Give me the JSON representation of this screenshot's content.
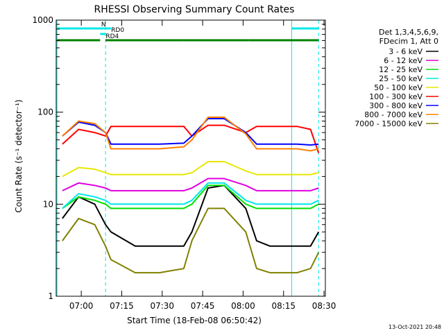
{
  "chart_data": {
    "type": "line",
    "title": "RHESSI Observing Summary Count Rates",
    "xlabel": "Start Time (18-Feb-08 06:50:42)",
    "ylabel": "Count Rate (s⁻¹ detector⁻¹)",
    "y_scale": "log",
    "ylim": [
      1,
      1000
    ],
    "xlim": [
      "06:50:42",
      "08:30:30"
    ],
    "x_ticks": [
      "07:00",
      "07:15",
      "07:30",
      "07:45",
      "08:00",
      "08:15",
      "08:30"
    ],
    "y_ticks": [
      "1",
      "10",
      "100",
      "1000"
    ],
    "grid": false,
    "legend_position": "right",
    "legend_header": [
      "Det 1,3,4,5,6,9,",
      "FDecim 1, Att 0"
    ],
    "timestamp": "13-Oct-2021 20:48",
    "x": [
      "06:53",
      "06:59",
      "07:05",
      "07:09",
      "07:11",
      "07:20",
      "07:29",
      "07:38",
      "07:41",
      "07:47",
      "07:53",
      "08:01",
      "08:05",
      "08:10",
      "08:15",
      "08:20",
      "08:25",
      "08:28"
    ],
    "series": [
      {
        "name": "3 - 6 keV",
        "color": "#000000",
        "values": [
          7,
          12,
          10,
          6,
          5,
          3.5,
          3.5,
          3.5,
          5,
          15,
          16,
          9,
          4,
          3.5,
          3.5,
          3.5,
          3.5,
          5
        ]
      },
      {
        "name": "6 - 12 keV",
        "color": "#e000e0",
        "values": [
          14,
          17,
          16,
          15,
          14,
          14,
          14,
          14,
          15,
          19,
          19,
          16,
          14,
          14,
          14,
          14,
          14,
          15
        ]
      },
      {
        "name": "12 - 25 keV",
        "color": "#00e000",
        "values": [
          9,
          12,
          11,
          10,
          9,
          9,
          9,
          9,
          10,
          16,
          16,
          10,
          9,
          9,
          9,
          9,
          9,
          10
        ]
      },
      {
        "name": "25 - 50 keV",
        "color": "#00e8e8",
        "values": [
          9,
          13,
          12,
          11,
          10,
          10,
          10,
          10,
          11,
          17,
          17,
          11,
          10,
          10,
          10,
          10,
          10,
          11
        ]
      },
      {
        "name": "50 - 100 keV",
        "color": "#e8e800",
        "values": [
          20,
          25,
          24,
          22,
          21,
          21,
          21,
          21,
          22,
          29,
          29,
          23,
          21,
          21,
          21,
          21,
          21,
          22
        ]
      },
      {
        "name": "100 - 300 keV",
        "color": "#ff0000",
        "values": [
          45,
          65,
          60,
          55,
          70,
          70,
          70,
          70,
          55,
          72,
          72,
          60,
          70,
          70,
          70,
          70,
          65,
          36
        ]
      },
      {
        "name": "300 - 800 keV",
        "color": "#0000ff",
        "values": [
          55,
          78,
          72,
          60,
          45,
          45,
          45,
          46,
          55,
          85,
          85,
          60,
          45,
          45,
          45,
          45,
          44,
          45
        ]
      },
      {
        "name": "800 - 7000 keV",
        "color": "#ff8000",
        "values": [
          55,
          80,
          75,
          60,
          40,
          40,
          40,
          42,
          50,
          88,
          88,
          58,
          40,
          40,
          40,
          40,
          38,
          40
        ]
      },
      {
        "name": "7000 - 15000 keV",
        "color": "#808000",
        "values": [
          4,
          7,
          6,
          3.5,
          2.5,
          1.8,
          1.8,
          2,
          4,
          9,
          9,
          5,
          2,
          1.8,
          1.8,
          1.8,
          2,
          3
        ]
      }
    ],
    "annotations": {
      "top_bars": [
        {
          "label": "N",
          "color": "#00e8e8",
          "segments": [
            [
              "06:51",
              "07:11"
            ],
            [
              "08:18",
              "08:28"
            ]
          ]
        },
        {
          "label": "RD0",
          "color": "#00e8e8",
          "segments": [
            [
              "07:07",
              "07:09"
            ]
          ]
        },
        {
          "label": "RD4",
          "color": "#008000",
          "segments": [
            [
              "06:51",
              "07:07"
            ],
            [
              "07:09",
              "07:38"
            ],
            [
              "07:38",
              "08:02"
            ],
            [
              "08:02",
              "08:25"
            ],
            [
              "08:25",
              "08:28"
            ]
          ]
        }
      ],
      "vertical_lines": [
        {
          "time": "06:51",
          "color": "#00e8e8",
          "style": "solid"
        },
        {
          "time": "07:09",
          "color": "#00e8e8",
          "style": "dashed"
        },
        {
          "time": "08:18",
          "color": "#00e8e8",
          "style": "solid"
        },
        {
          "time": "08:28",
          "color": "#00e8e8",
          "style": "dashed"
        }
      ]
    }
  }
}
